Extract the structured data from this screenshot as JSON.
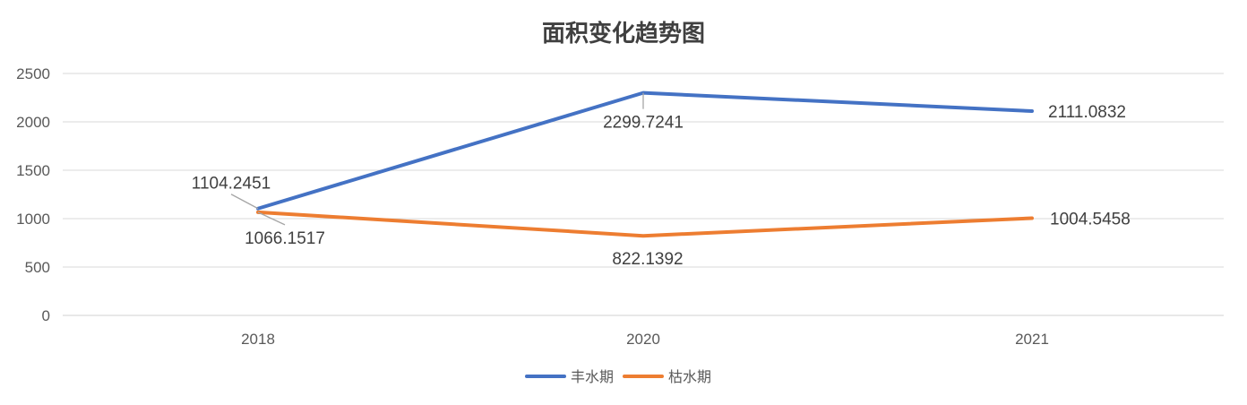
{
  "chart_data": {
    "type": "line",
    "title": "面积变化趋势图",
    "categories": [
      "2018",
      "2020",
      "2021"
    ],
    "series": [
      {
        "name": "丰水期",
        "values": [
          1104.2451,
          2299.7241,
          2111.0832
        ],
        "labels": [
          "1104.2451",
          "2299.7241",
          "2111.0832"
        ],
        "color": "#4472C4"
      },
      {
        "name": "枯水期",
        "values": [
          1066.1517,
          822.1392,
          1004.5458
        ],
        "labels": [
          "1066.1517",
          "822.1392",
          "1004.5458"
        ],
        "color": "#ED7D31"
      }
    ],
    "ylim": [
      0,
      2500
    ],
    "yticks": [
      0,
      500,
      1000,
      1500,
      2000,
      2500
    ],
    "ytick_labels": [
      "0",
      "500",
      "1000",
      "1500",
      "2000",
      "2500"
    ],
    "grid": true,
    "legend_position": "bottom",
    "colors": {
      "grid": "#D9D9D9",
      "axis": "#D9D9D9",
      "leader": "#A6A6A6"
    }
  }
}
